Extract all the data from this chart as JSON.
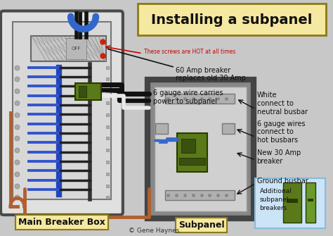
{
  "title": "Installing a subpanel",
  "bg_color": "#c8c8c8",
  "title_box_color": "#f5e8a0",
  "title_box_border": "#8b7a14",
  "main_label": "Main Breaker Box",
  "main_label_box": "#f5e8a0",
  "sub_label": "Subpanel",
  "sub_label_box": "#f5e8a0",
  "copyright": "© Gene Haynes",
  "wire_black": "#111111",
  "wire_white": "#dddddd",
  "wire_copper": "#b06030",
  "wire_blue": "#3355cc",
  "green_breaker": "#5a7a1a",
  "green_breaker2": "#6a9a2a",
  "busbar_color": "#a8a8a8",
  "panel_outer": "#4a4a4a",
  "panel_inner": "#bebebe",
  "subpanel_outer": "#555555",
  "ann_hot": "#cc0000",
  "ann_black": "#111111"
}
